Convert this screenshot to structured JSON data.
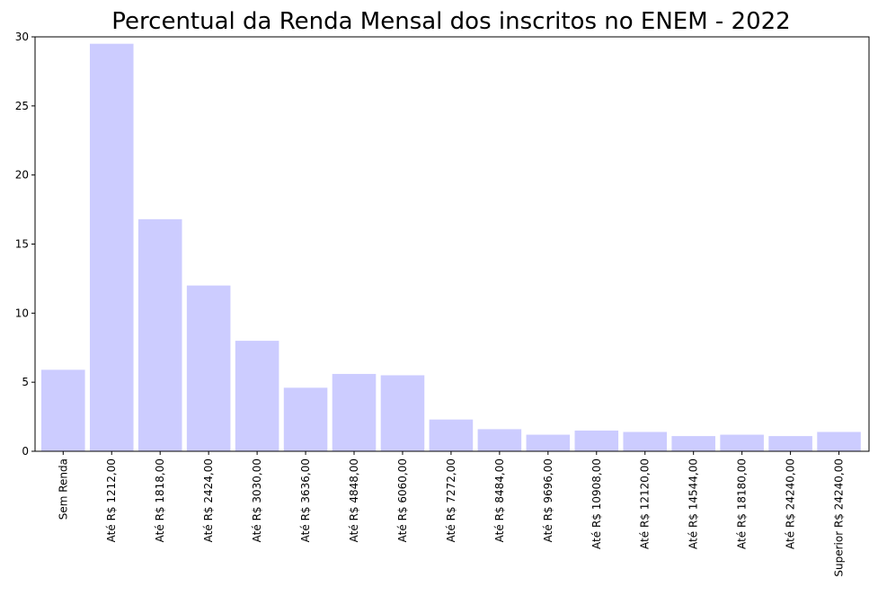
{
  "chart_data": {
    "type": "bar",
    "title": "Percentual da Renda Mensal dos inscritos no ENEM - 2022",
    "xlabel": "",
    "ylabel": "",
    "ylim": [
      0,
      30
    ],
    "yticks": [
      "0",
      "5",
      "10",
      "15",
      "20",
      "25",
      "30"
    ],
    "grid": false,
    "bar_color": "#ccccff",
    "categories": [
      "Sem Renda",
      "Até R$ 1212,00",
      "Até R$ 1818,00",
      "Até R$ 2424,00",
      "Até R$ 3030,00",
      "Até R$ 3636,00",
      "Até R$ 4848,00",
      "Até R$ 6060,00",
      "Até R$ 7272,00",
      "Até R$ 8484,00",
      "Até R$ 9696,00",
      "Até R$ 10908,00",
      "Até R$ 12120,00",
      "Até R$ 14544,00",
      "Até R$ 18180,00",
      "Até R$ 24240,00",
      "Superior R$ 24240,00"
    ],
    "values": [
      5.9,
      29.5,
      16.8,
      12.0,
      8.0,
      4.6,
      5.6,
      5.5,
      2.3,
      1.6,
      1.2,
      1.5,
      1.4,
      1.1,
      1.2,
      1.1,
      1.4
    ]
  }
}
